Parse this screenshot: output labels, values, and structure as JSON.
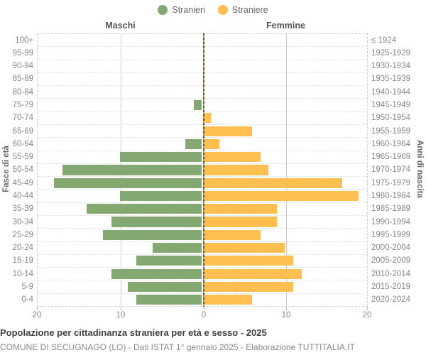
{
  "legend": {
    "male_label": "Stranieri",
    "female_label": "Straniere"
  },
  "headers": {
    "left": "Maschi",
    "right": "Femmine"
  },
  "axis": {
    "left_title": "Fasce di età",
    "right_title": "Anni di nascita",
    "x_ticks": [
      "20",
      "10",
      "0",
      "10",
      "20"
    ]
  },
  "colors": {
    "male": "#83a872",
    "female": "#fdc050",
    "center_line_dark": "#5b5a45",
    "center_line_gold": "#c3a23c"
  },
  "footer": {
    "title": "Popolazione per cittadinanza straniera per età e sesso - 2025",
    "subtitle": "COMUNE DI SECUGNAGO (LO) - Dati ISTAT 1° gennaio 2025 - Elaborazione TUTTITALIA.IT"
  },
  "chart_data": {
    "type": "bar",
    "subtype": "population-pyramid",
    "title": "Popolazione per cittadinanza straniera per età e sesso - 2025",
    "xlabel_left": "Maschi",
    "xlabel_right": "Femmine",
    "ylabel_left": "Fasce di età",
    "ylabel_right": "Anni di nascita",
    "xlim": [
      0,
      20
    ],
    "x_tick_step": 10,
    "grid": true,
    "legend_position": "top-center",
    "age_groups": [
      "100+",
      "95-99",
      "90-94",
      "85-89",
      "80-84",
      "75-79",
      "70-74",
      "65-69",
      "60-64",
      "55-59",
      "50-54",
      "45-49",
      "40-44",
      "35-39",
      "30-34",
      "25-29",
      "20-24",
      "15-19",
      "10-14",
      "5-9",
      "0-4"
    ],
    "birth_years": [
      "≤ 1924",
      "1925-1929",
      "1930-1934",
      "1935-1939",
      "1940-1944",
      "1945-1949",
      "1950-1954",
      "1955-1959",
      "1960-1964",
      "1965-1969",
      "1970-1974",
      "1975-1979",
      "1980-1984",
      "1985-1989",
      "1990-1994",
      "1995-1999",
      "2000-2004",
      "2005-2009",
      "2010-2014",
      "2015-2019",
      "2020-2024"
    ],
    "series": [
      {
        "name": "Stranieri",
        "side": "left",
        "values": [
          0,
          0,
          0,
          0,
          0,
          1,
          0,
          0,
          2,
          10,
          17,
          18,
          10,
          14,
          11,
          12,
          6,
          8,
          11,
          9,
          8
        ]
      },
      {
        "name": "Straniere",
        "side": "right",
        "values": [
          0,
          0,
          0,
          0,
          0,
          0,
          1,
          6,
          2,
          7,
          8,
          17,
          19,
          9,
          9,
          7,
          10,
          11,
          12,
          11,
          6
        ]
      }
    ]
  }
}
